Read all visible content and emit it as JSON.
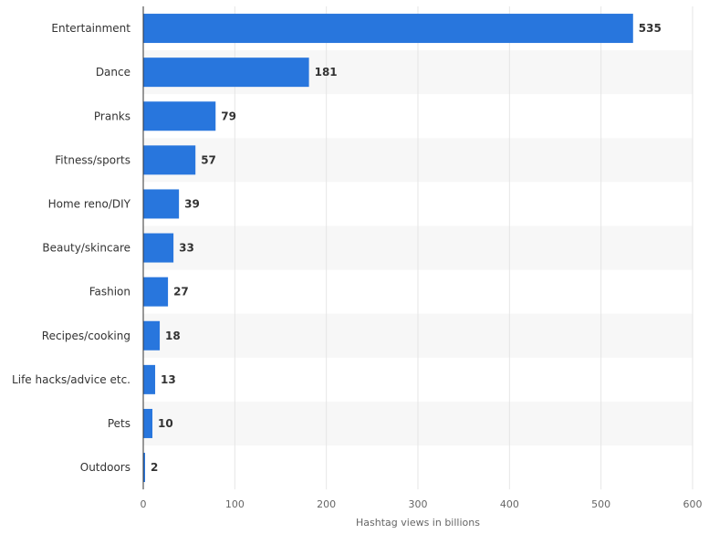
{
  "chart_data": {
    "type": "bar",
    "orientation": "horizontal",
    "categories": [
      "Entertainment",
      "Dance",
      "Pranks",
      "Fitness/sports",
      "Home reno/DIY",
      "Beauty/skincare",
      "Fashion",
      "Recipes/cooking",
      "Life hacks/advice etc.",
      "Pets",
      "Outdoors"
    ],
    "values": [
      535,
      181,
      79,
      57,
      39,
      33,
      27,
      18,
      13,
      10,
      2
    ],
    "title": "",
    "xlabel": "Hashtag views in billions",
    "ylabel": "",
    "xlim": [
      0,
      600
    ],
    "xticks": [
      0,
      100,
      200,
      300,
      400,
      500,
      600
    ],
    "grid": true,
    "legend": "none",
    "bar_color": "#2876dd",
    "band_color": "#f7f7f7"
  }
}
